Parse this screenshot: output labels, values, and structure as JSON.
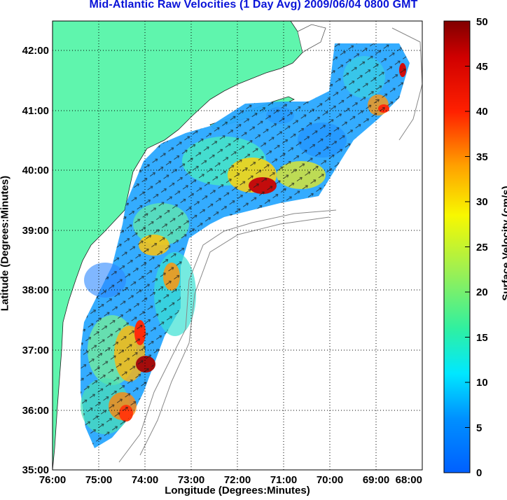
{
  "title": "Mid-Atlantic Raw Velocities (1 Day Avg) 2009/06/04 0800 GMT",
  "x_axis": {
    "label": "Longitude (Degrees:Minutes)",
    "ticks": [
      "76:00",
      "75:00",
      "74:00",
      "73:00",
      "72:00",
      "71:00",
      "70:00",
      "69:00",
      "68:00"
    ]
  },
  "y_axis": {
    "label": "Latitude (Degrees:Minutes)",
    "ticks": [
      "42:00",
      "41:00",
      "40:00",
      "39:00",
      "38:00",
      "37:00",
      "36:00",
      "35:00"
    ]
  },
  "colorbar": {
    "label": "Surface Velocity (cm/s)",
    "ticks": [
      "50",
      "45",
      "40",
      "35",
      "30",
      "25",
      "20",
      "15",
      "10",
      "5",
      "0"
    ],
    "range": [
      0,
      50
    ],
    "colormap": "jet"
  },
  "colors": {
    "title": "#0a14d8",
    "land": "#5ff5ad",
    "ocean": "#ffffff",
    "grid": "#000000"
  }
}
